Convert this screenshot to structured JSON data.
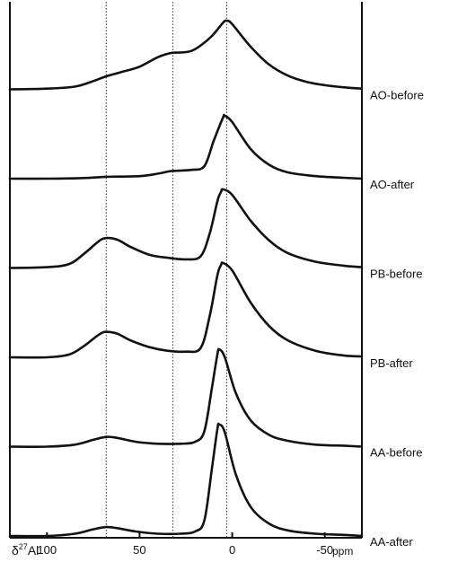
{
  "chart_data": {
    "type": "line",
    "x_axis": {
      "label_prefix": "δ",
      "label_sup": "27",
      "label_suffix": "Al",
      "unit": "ppm",
      "reversed": true,
      "range": [
        120,
        -70
      ],
      "ticks": [
        100,
        50,
        0,
        -50
      ],
      "tick_labels": [
        "100",
        "50",
        "0",
        "-50"
      ]
    },
    "y_axis": {
      "label": "",
      "ticks": []
    },
    "reference_lines_ppm": [
      68,
      32,
      3
    ],
    "line_color": "#111111",
    "series": [
      {
        "name": "AO-before",
        "baseline": 0.02,
        "peak_height": 0.48,
        "points": [
          [
            120,
            0.0
          ],
          [
            100,
            0.01
          ],
          [
            85,
            0.04
          ],
          [
            75,
            0.12
          ],
          [
            68,
            0.19
          ],
          [
            60,
            0.25
          ],
          [
            50,
            0.33
          ],
          [
            40,
            0.47
          ],
          [
            33,
            0.53
          ],
          [
            22,
            0.56
          ],
          [
            12,
            0.75
          ],
          [
            5,
            0.97
          ],
          [
            3,
            1.0
          ],
          [
            0,
            0.95
          ],
          [
            -10,
            0.62
          ],
          [
            -20,
            0.36
          ],
          [
            -30,
            0.2
          ],
          [
            -40,
            0.11
          ],
          [
            -50,
            0.06
          ],
          [
            -60,
            0.03
          ],
          [
            -70,
            0.01
          ]
        ]
      },
      {
        "name": "AO-after",
        "baseline": 0.02,
        "peak_height": 0.44,
        "points": [
          [
            120,
            0.0
          ],
          [
            100,
            0.0
          ],
          [
            80,
            0.01
          ],
          [
            68,
            0.03
          ],
          [
            50,
            0.04
          ],
          [
            40,
            0.08
          ],
          [
            33,
            0.12
          ],
          [
            22,
            0.14
          ],
          [
            15,
            0.2
          ],
          [
            10,
            0.6
          ],
          [
            5,
            0.97
          ],
          [
            4,
            1.0
          ],
          [
            0,
            0.9
          ],
          [
            -10,
            0.47
          ],
          [
            -20,
            0.22
          ],
          [
            -30,
            0.1
          ],
          [
            -45,
            0.04
          ],
          [
            -60,
            0.015
          ],
          [
            -70,
            0.0
          ]
        ]
      },
      {
        "name": "PB-before",
        "baseline": 0.02,
        "peak_height": 0.55,
        "points": [
          [
            120,
            0.0
          ],
          [
            100,
            0.01
          ],
          [
            88,
            0.05
          ],
          [
            80,
            0.18
          ],
          [
            72,
            0.34
          ],
          [
            68,
            0.38
          ],
          [
            62,
            0.36
          ],
          [
            55,
            0.27
          ],
          [
            45,
            0.17
          ],
          [
            35,
            0.13
          ],
          [
            25,
            0.11
          ],
          [
            17,
            0.15
          ],
          [
            12,
            0.45
          ],
          [
            8,
            0.85
          ],
          [
            6,
            0.97
          ],
          [
            5,
            1.0
          ],
          [
            0,
            0.93
          ],
          [
            -10,
            0.6
          ],
          [
            -20,
            0.35
          ],
          [
            -30,
            0.19
          ],
          [
            -45,
            0.08
          ],
          [
            -60,
            0.03
          ],
          [
            -70,
            0.01
          ]
        ]
      },
      {
        "name": "PB-after",
        "baseline": 0.02,
        "peak_height": 0.66,
        "points": [
          [
            120,
            0.0
          ],
          [
            100,
            0.0
          ],
          [
            88,
            0.03
          ],
          [
            80,
            0.12
          ],
          [
            72,
            0.24
          ],
          [
            68,
            0.27
          ],
          [
            62,
            0.25
          ],
          [
            55,
            0.18
          ],
          [
            45,
            0.11
          ],
          [
            35,
            0.07
          ],
          [
            25,
            0.06
          ],
          [
            17,
            0.1
          ],
          [
            12,
            0.45
          ],
          [
            8,
            0.87
          ],
          [
            6,
            0.98
          ],
          [
            5,
            1.0
          ],
          [
            0,
            0.92
          ],
          [
            -10,
            0.58
          ],
          [
            -20,
            0.33
          ],
          [
            -30,
            0.18
          ],
          [
            -45,
            0.07
          ],
          [
            -60,
            0.02
          ],
          [
            -70,
            0.01
          ]
        ]
      },
      {
        "name": "AA-before",
        "baseline": 0.02,
        "peak_height": 0.68,
        "points": [
          [
            120,
            0.0
          ],
          [
            100,
            0.0
          ],
          [
            85,
            0.02
          ],
          [
            75,
            0.07
          ],
          [
            68,
            0.1
          ],
          [
            62,
            0.09
          ],
          [
            52,
            0.05
          ],
          [
            40,
            0.03
          ],
          [
            28,
            0.03
          ],
          [
            20,
            0.05
          ],
          [
            15,
            0.16
          ],
          [
            11,
            0.6
          ],
          [
            8,
            0.95
          ],
          [
            7,
            1.0
          ],
          [
            4,
            0.92
          ],
          [
            -2,
            0.55
          ],
          [
            -10,
            0.27
          ],
          [
            -20,
            0.12
          ],
          [
            -30,
            0.06
          ],
          [
            -45,
            0.02
          ],
          [
            -60,
            0.01
          ],
          [
            -70,
            0.0
          ]
        ]
      },
      {
        "name": "AA-after",
        "baseline": 0.02,
        "peak_height": 0.78,
        "points": [
          [
            120,
            0.0
          ],
          [
            100,
            0.0
          ],
          [
            85,
            0.02
          ],
          [
            75,
            0.06
          ],
          [
            68,
            0.08
          ],
          [
            62,
            0.07
          ],
          [
            52,
            0.04
          ],
          [
            40,
            0.02
          ],
          [
            28,
            0.02
          ],
          [
            20,
            0.04
          ],
          [
            15,
            0.14
          ],
          [
            11,
            0.6
          ],
          [
            8,
            0.96
          ],
          [
            7,
            1.0
          ],
          [
            4,
            0.93
          ],
          [
            -2,
            0.55
          ],
          [
            -10,
            0.26
          ],
          [
            -20,
            0.11
          ],
          [
            -30,
            0.05
          ],
          [
            -45,
            0.02
          ],
          [
            -60,
            0.01
          ],
          [
            -70,
            0.0
          ]
        ]
      }
    ]
  }
}
